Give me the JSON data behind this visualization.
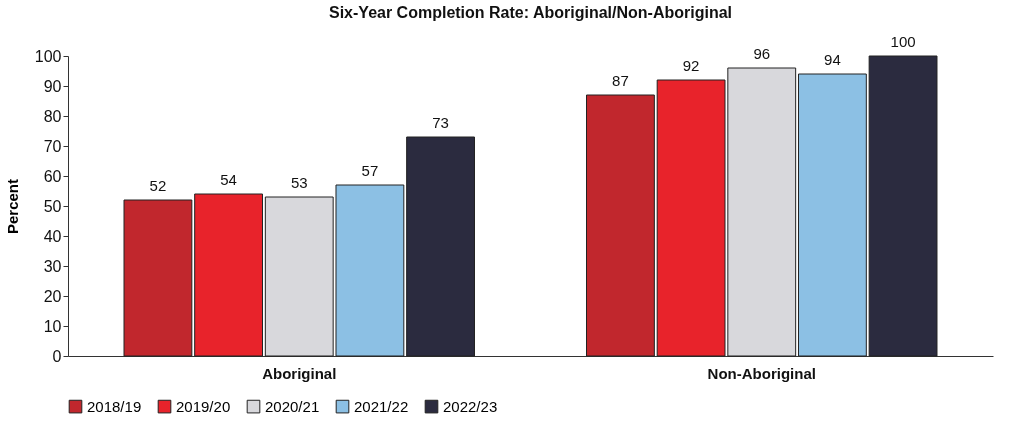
{
  "chart_data": {
    "type": "bar",
    "title": "Six-Year Completion Rate: Aboriginal/Non-Aboriginal",
    "ylabel": "Percent",
    "categories": [
      "Aboriginal",
      "Non-Aboriginal"
    ],
    "series": [
      {
        "name": "2018/19",
        "color": "#c1272d",
        "values": [
          52,
          87
        ]
      },
      {
        "name": "2019/20",
        "color": "#e8232b",
        "values": [
          54,
          92
        ]
      },
      {
        "name": "2020/21",
        "color": "#d8d8dc",
        "values": [
          53,
          96
        ]
      },
      {
        "name": "2021/22",
        "color": "#8cc0e4",
        "values": [
          57,
          94
        ]
      },
      {
        "name": "2022/23",
        "color": "#2b2b3f",
        "values": [
          73,
          100
        ]
      }
    ],
    "ylim": [
      0,
      100
    ],
    "yticks": [
      0,
      10,
      20,
      30,
      40,
      50,
      60,
      70,
      80,
      90,
      100
    ],
    "data_labels": true,
    "legend": "bottom"
  }
}
